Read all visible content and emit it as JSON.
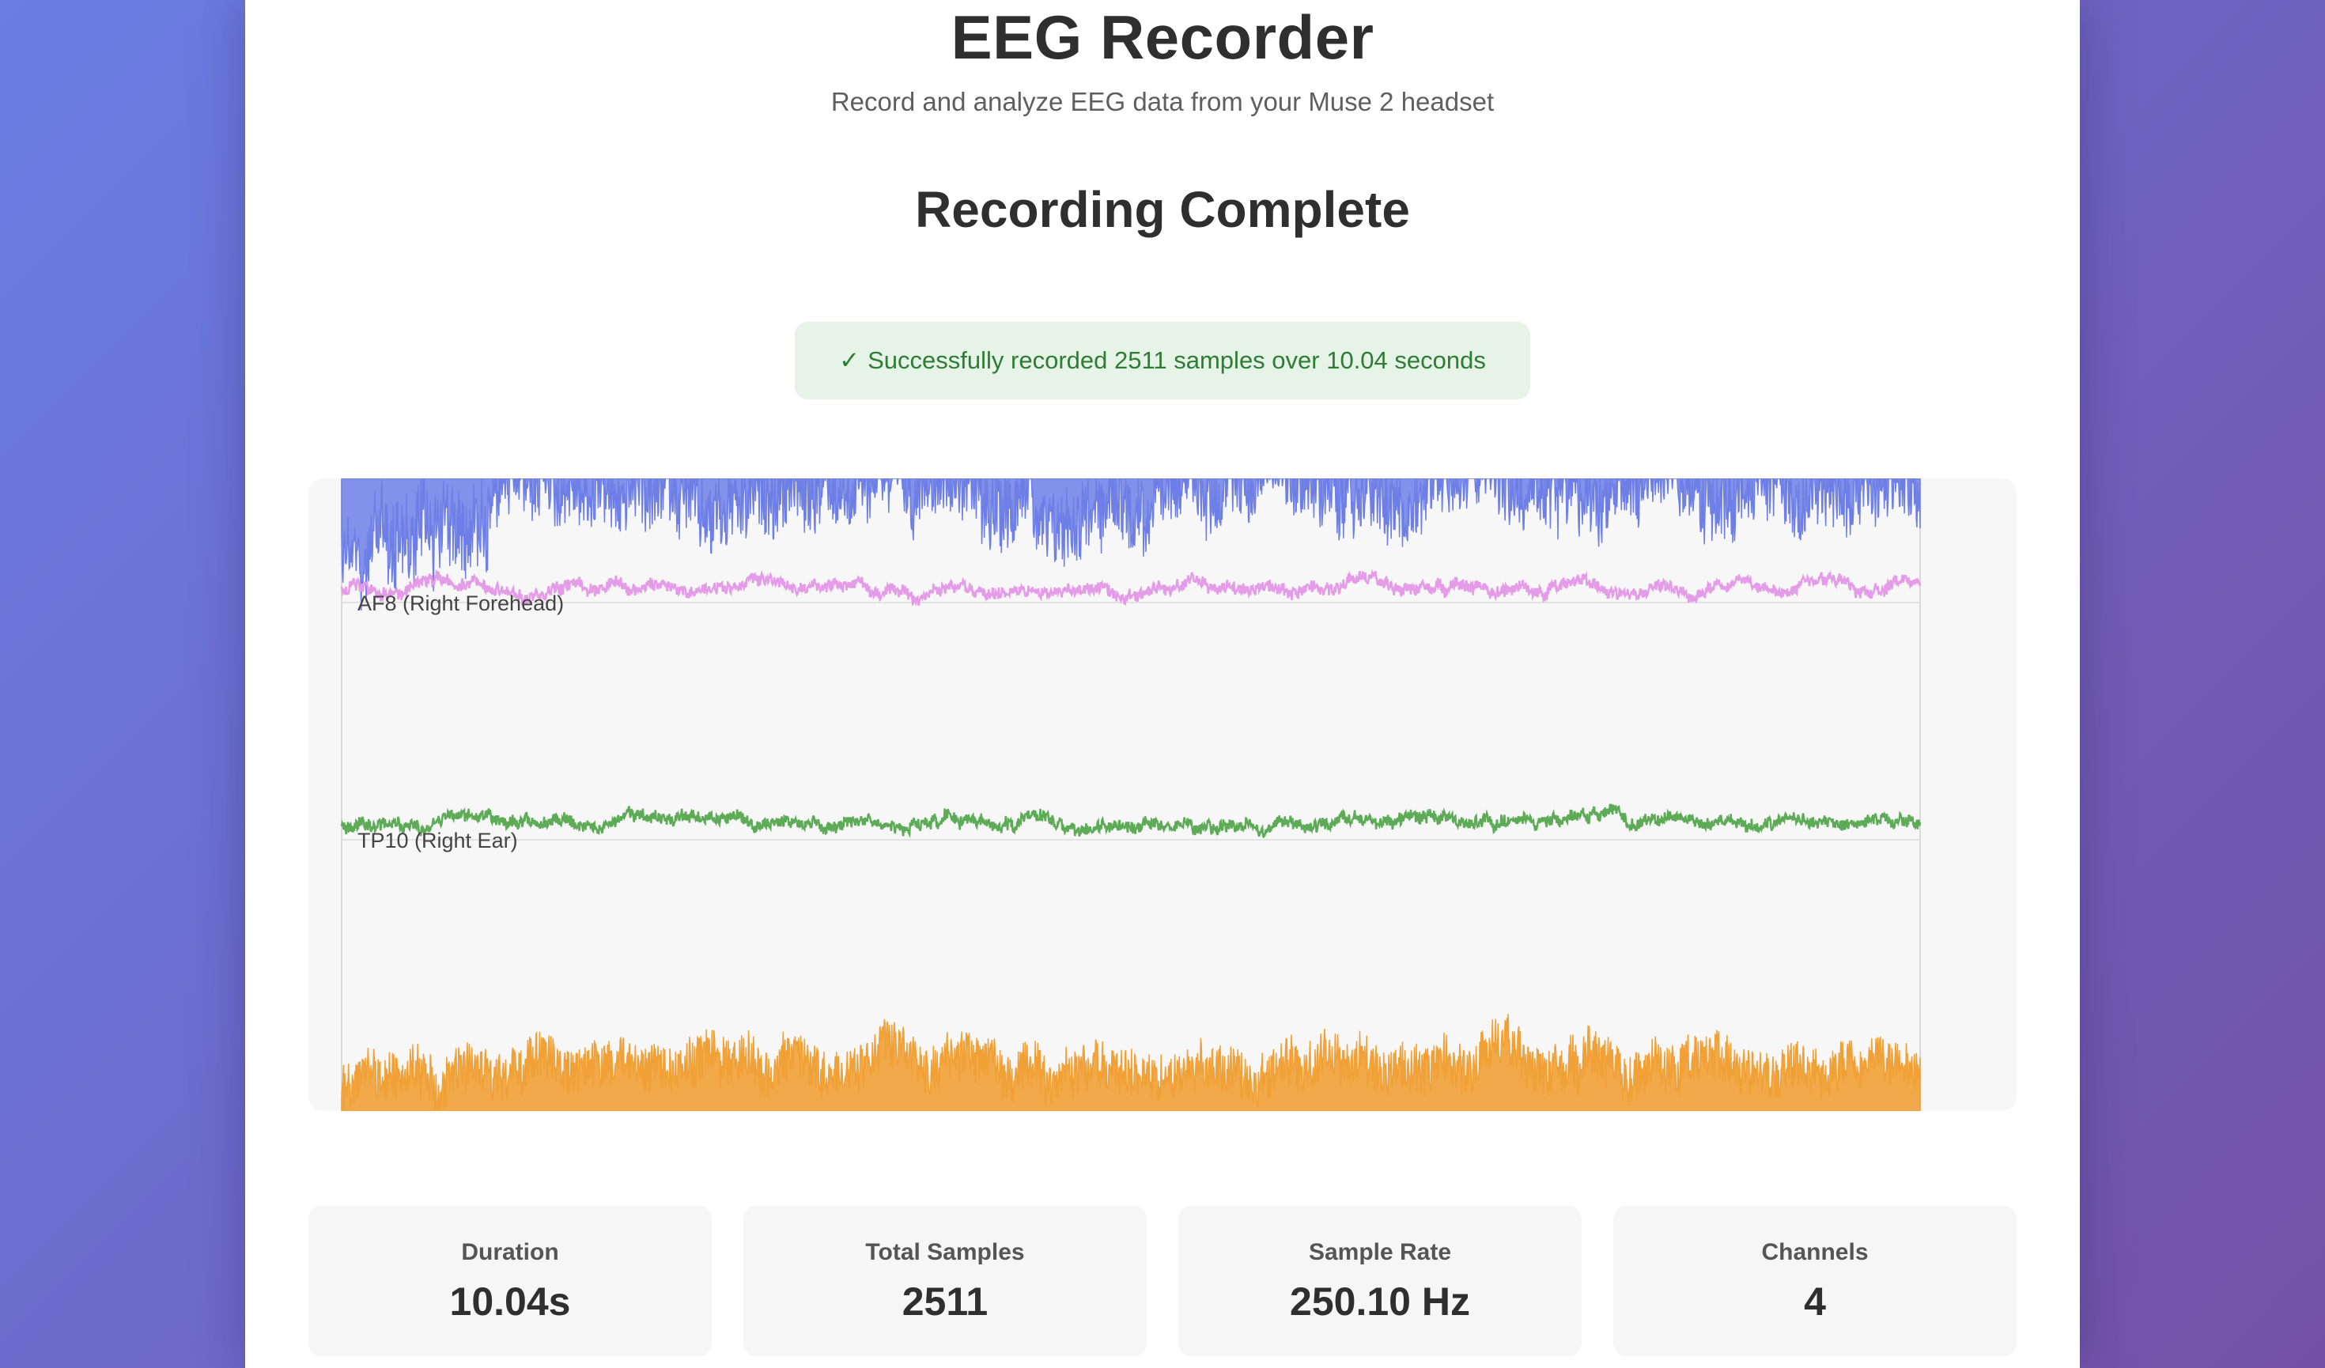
{
  "header": {
    "title": "EEG Recorder",
    "subtitle": "Record and analyze EEG data from your Muse 2 headset"
  },
  "status": {
    "heading": "Recording Complete",
    "banner_check": "✓",
    "banner_text": "Successfully recorded 2511 samples over 10.04 seconds"
  },
  "chart_data": {
    "type": "line",
    "title": "",
    "xlabel": "",
    "ylabel": "",
    "grid": false,
    "series": [
      {
        "name": "",
        "color": "#6d7fe6",
        "style": "dense high-amplitude signal clipped at top edge"
      },
      {
        "name": "AF8 (Right Forehead)",
        "color": "#e59ce8",
        "style": "low-amplitude signal"
      },
      {
        "name": "TP10 (Right Ear)",
        "color": "#5dab57",
        "style": "low-amplitude signal"
      },
      {
        "name": "",
        "color": "#f0a035",
        "style": "dense high-amplitude signal clipped at bottom edge"
      }
    ]
  },
  "stats": [
    {
      "label": "Duration",
      "value": "10.04s"
    },
    {
      "label": "Total Samples",
      "value": "2511"
    },
    {
      "label": "Sample Rate",
      "value": "250.10 Hz"
    },
    {
      "label": "Channels",
      "value": "4"
    }
  ]
}
